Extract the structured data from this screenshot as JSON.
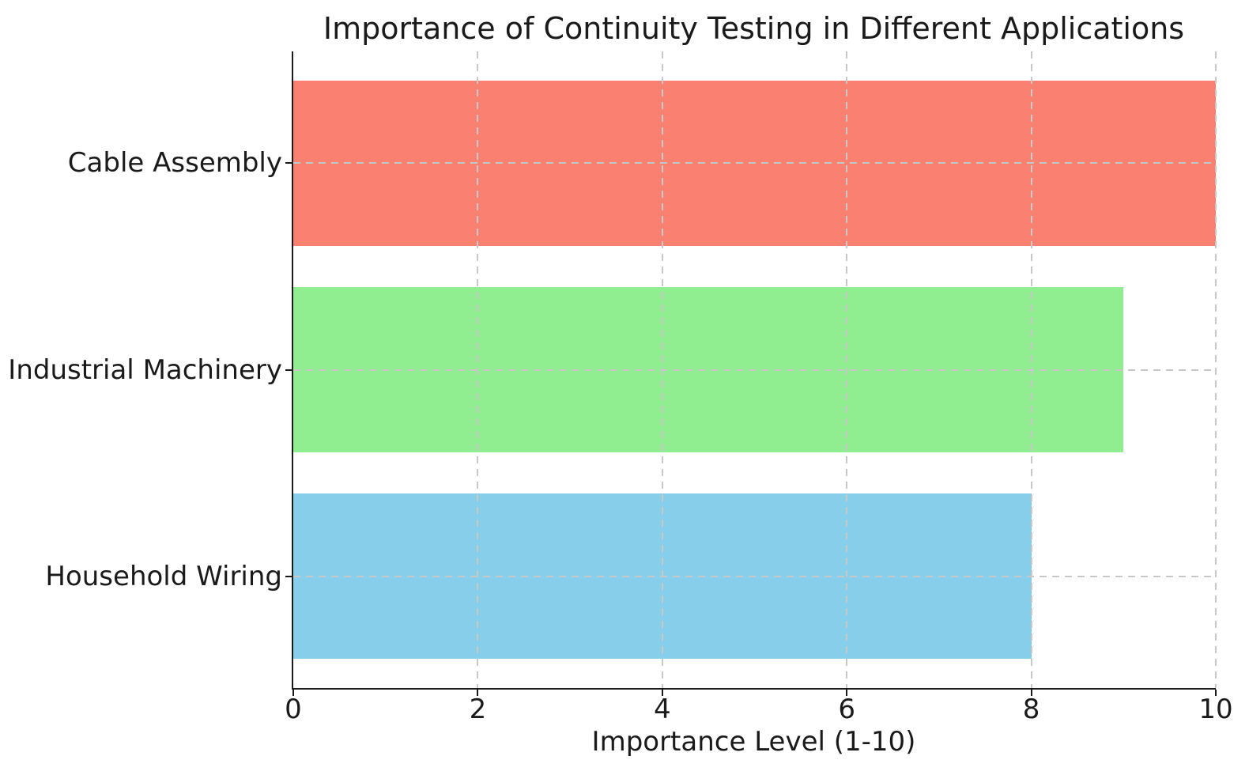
{
  "figure": {
    "background": "#ffffff"
  },
  "chart_data": {
    "type": "bar",
    "orientation": "horizontal",
    "title": "Importance of Continuity Testing in Different Applications",
    "xlabel": "Importance Level (1-10)",
    "ylabel": "",
    "categories": [
      "Cable Assembly",
      "Industrial Machinery",
      "Household Wiring"
    ],
    "values": [
      10,
      9,
      8
    ],
    "bar_colors": [
      "#FA8072",
      "#90EE90",
      "#87CEEB"
    ],
    "xlim": [
      0,
      10
    ],
    "xticks": [
      0,
      2,
      4,
      6,
      8,
      10
    ],
    "grid": true,
    "grid_line_style": "dashed",
    "grid_color": "#c8c8c8",
    "grid_above_bars": true,
    "axis_color": "#1a1a1a",
    "text_color": "#1a1a1a",
    "legend": "none"
  }
}
